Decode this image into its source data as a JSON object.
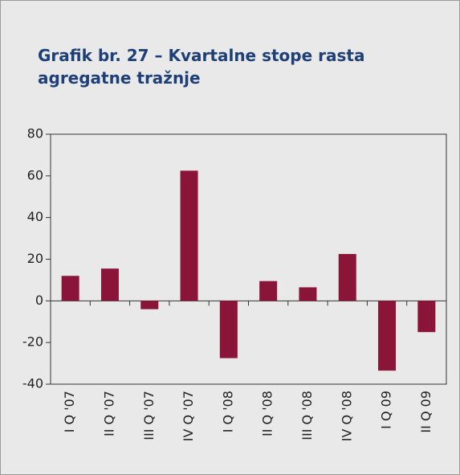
{
  "chart_data": {
    "type": "bar",
    "title": "Grafik br. 27 – Kvartalne stope rasta agregatne tražnje",
    "categories": [
      "I Q '07",
      "II Q '07",
      "III Q '07",
      "IV Q '07",
      "I Q '08",
      "II Q '08",
      "III Q '08",
      "IV Q '08",
      "I Q 09",
      "II Q 09"
    ],
    "values": [
      12,
      15.5,
      -4,
      62.5,
      -27.5,
      9.5,
      6.5,
      22.5,
      -33.5,
      -15
    ],
    "color": "#8a1538",
    "ylim": [
      -40,
      80
    ],
    "yticks": [
      -40,
      -20,
      0,
      20,
      40,
      60,
      80
    ],
    "grid": false
  }
}
